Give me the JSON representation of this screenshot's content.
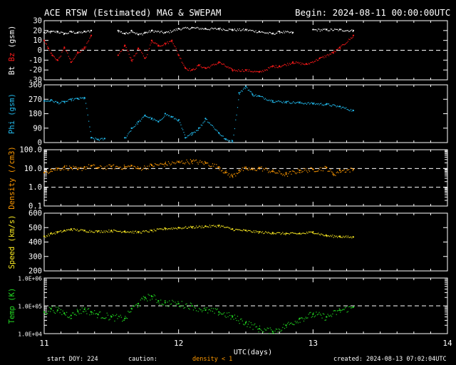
{
  "header": {
    "title": "ACE RTSW (Estimated) MAG & SWEPAM",
    "begin": "Begin: 2024-08-11 00:00:00UTC"
  },
  "footer": {
    "start_doy": "start DOY: 224",
    "caution": "caution:",
    "density_note": "density < 1",
    "created": "created: 2024-08-13 07:02:04UTC"
  },
  "colors": {
    "bt": "#ffffff",
    "bz": "#ff1a1a",
    "phi": "#22bbee",
    "density": "#ff9900",
    "speed": "#ffee22",
    "temp": "#22dd22",
    "axis": "#ffffff"
  },
  "chart_data": [
    {
      "type": "scatter",
      "ylabel_parts": [
        "Bt",
        "Bz",
        "(gsm)"
      ],
      "ylim": [
        -30,
        30
      ],
      "yticks": [
        "30",
        "20",
        "10",
        "0",
        "-10",
        "-20",
        "-30"
      ],
      "reference_lines": [
        0
      ],
      "series": [
        {
          "name": "Bt",
          "x": [
            11.0,
            11.05,
            11.1,
            11.15,
            11.2,
            11.25,
            11.3,
            11.35,
            11.55,
            11.6,
            11.65,
            11.7,
            11.75,
            11.8,
            11.9,
            12.0,
            12.1,
            12.2,
            12.3,
            12.4,
            12.5,
            12.6,
            12.7,
            12.75,
            12.85,
            13.0,
            13.1,
            13.2,
            13.3
          ],
          "y": [
            18,
            19,
            19,
            17,
            19,
            18,
            19,
            20,
            20,
            17,
            20,
            16,
            18,
            20,
            18,
            22,
            23,
            22,
            22,
            21,
            21,
            19,
            17,
            19,
            18,
            21,
            21,
            21,
            20
          ]
        },
        {
          "name": "Bz",
          "x": [
            11.0,
            11.03,
            11.06,
            11.1,
            11.15,
            11.2,
            11.25,
            11.3,
            11.35,
            11.55,
            11.6,
            11.65,
            11.7,
            11.75,
            11.8,
            11.85,
            11.9,
            11.95,
            12.0,
            12.05,
            12.1,
            12.15,
            12.2,
            12.3,
            12.4,
            12.5,
            12.6,
            12.7,
            12.75,
            12.85,
            12.95,
            13.05,
            13.15,
            13.2,
            13.3
          ],
          "y": [
            10,
            2,
            -5,
            -10,
            3,
            -12,
            -2,
            3,
            15,
            -5,
            5,
            -10,
            2,
            -8,
            10,
            5,
            7,
            10,
            -5,
            -18,
            -20,
            -15,
            -18,
            -12,
            -20,
            -20,
            -22,
            -16,
            -16,
            -12,
            -14,
            -8,
            -2,
            3,
            15
          ]
        }
      ]
    },
    {
      "type": "scatter",
      "ylabel": "Phi (gsm)",
      "ylim": [
        0,
        360
      ],
      "yticks": [
        "360",
        "270",
        "180",
        "90",
        "0"
      ],
      "series": [
        {
          "name": "Phi",
          "x": [
            11.0,
            11.05,
            11.1,
            11.15,
            11.2,
            11.25,
            11.3,
            11.35,
            11.4,
            11.45,
            11.6,
            11.65,
            11.7,
            11.75,
            11.8,
            11.85,
            11.9,
            11.95,
            12.0,
            12.05,
            12.1,
            12.15,
            12.2,
            12.3,
            12.35,
            12.4,
            12.45,
            12.5,
            12.55,
            12.6,
            12.7,
            12.8,
            12.9,
            13.0,
            13.1,
            13.2,
            13.3
          ],
          "y": [
            260,
            265,
            250,
            255,
            270,
            275,
            280,
            30,
            20,
            25,
            30,
            90,
            130,
            170,
            150,
            130,
            180,
            160,
            140,
            30,
            60,
            90,
            150,
            60,
            20,
            10,
            310,
            350,
            300,
            290,
            260,
            255,
            250,
            245,
            240,
            225,
            200
          ]
        }
      ]
    },
    {
      "type": "scatter",
      "ylabel": "Density (/cm3)",
      "yscale": "log",
      "ylim": [
        0.1,
        100
      ],
      "yticks": [
        "100.0",
        "10.0",
        "1.0",
        "0.1"
      ],
      "reference_lines": [
        1,
        10
      ],
      "series": [
        {
          "name": "Density",
          "x": [
            11.0,
            11.05,
            11.1,
            11.15,
            11.2,
            11.25,
            11.3,
            11.35,
            11.4,
            11.5,
            11.6,
            11.65,
            11.7,
            11.8,
            11.9,
            12.0,
            12.1,
            12.2,
            12.3,
            12.35,
            12.4,
            12.45,
            12.5,
            12.55,
            12.6,
            12.7,
            12.8,
            12.9,
            13.0,
            13.1,
            13.15,
            13.2,
            13.3
          ],
          "y": [
            6,
            9,
            10,
            12,
            11,
            9,
            12,
            14,
            11,
            13,
            12,
            14,
            10,
            15,
            18,
            22,
            25,
            20,
            12,
            6,
            4,
            8,
            10,
            9,
            11,
            7,
            5,
            8,
            9,
            11,
            5,
            8,
            9
          ]
        }
      ]
    },
    {
      "type": "scatter",
      "ylabel": "Speed (km/s)",
      "ylim": [
        200,
        600
      ],
      "yticks": [
        "600",
        "500",
        "400",
        "300",
        "200"
      ],
      "series": [
        {
          "name": "Speed",
          "x": [
            11.0,
            11.05,
            11.1,
            11.15,
            11.2,
            11.3,
            11.4,
            11.5,
            11.6,
            11.7,
            11.8,
            11.9,
            12.0,
            12.1,
            12.2,
            12.3,
            12.4,
            12.5,
            12.6,
            12.7,
            12.8,
            12.9,
            13.0,
            13.1,
            13.2,
            13.3
          ],
          "y": [
            440,
            460,
            470,
            480,
            490,
            480,
            475,
            480,
            475,
            470,
            480,
            495,
            500,
            505,
            510,
            515,
            490,
            480,
            470,
            465,
            460,
            460,
            470,
            445,
            440,
            435
          ]
        }
      ]
    },
    {
      "type": "scatter",
      "ylabel": "Temp (K)",
      "yscale": "log",
      "ylim": [
        10000,
        1000000
      ],
      "yticks": [
        "1.0E+06",
        "1.0E+05",
        "1.0E+04"
      ],
      "reference_lines": [
        100000
      ],
      "series": [
        {
          "name": "Temp",
          "x": [
            11.0,
            11.05,
            11.1,
            11.15,
            11.2,
            11.25,
            11.3,
            11.35,
            11.4,
            11.5,
            11.6,
            11.65,
            11.7,
            11.75,
            11.8,
            11.85,
            11.9,
            12.0,
            12.1,
            12.2,
            12.3,
            12.4,
            12.5,
            12.6,
            12.7,
            12.8,
            12.9,
            13.0,
            13.1,
            13.2,
            13.3
          ],
          "y": [
            60000,
            80000,
            70000,
            55000,
            45000,
            65000,
            75000,
            60000,
            50000,
            40000,
            35000,
            80000,
            120000,
            200000,
            220000,
            150000,
            130000,
            120000,
            100000,
            70000,
            60000,
            40000,
            25000,
            15000,
            12000,
            20000,
            35000,
            50000,
            40000,
            70000,
            90000
          ]
        }
      ]
    }
  ],
  "x_axis": {
    "xlim": [
      11,
      14
    ],
    "ticks": [
      "11",
      "12",
      "13",
      "14"
    ],
    "xlabel": "UTC(days)"
  }
}
